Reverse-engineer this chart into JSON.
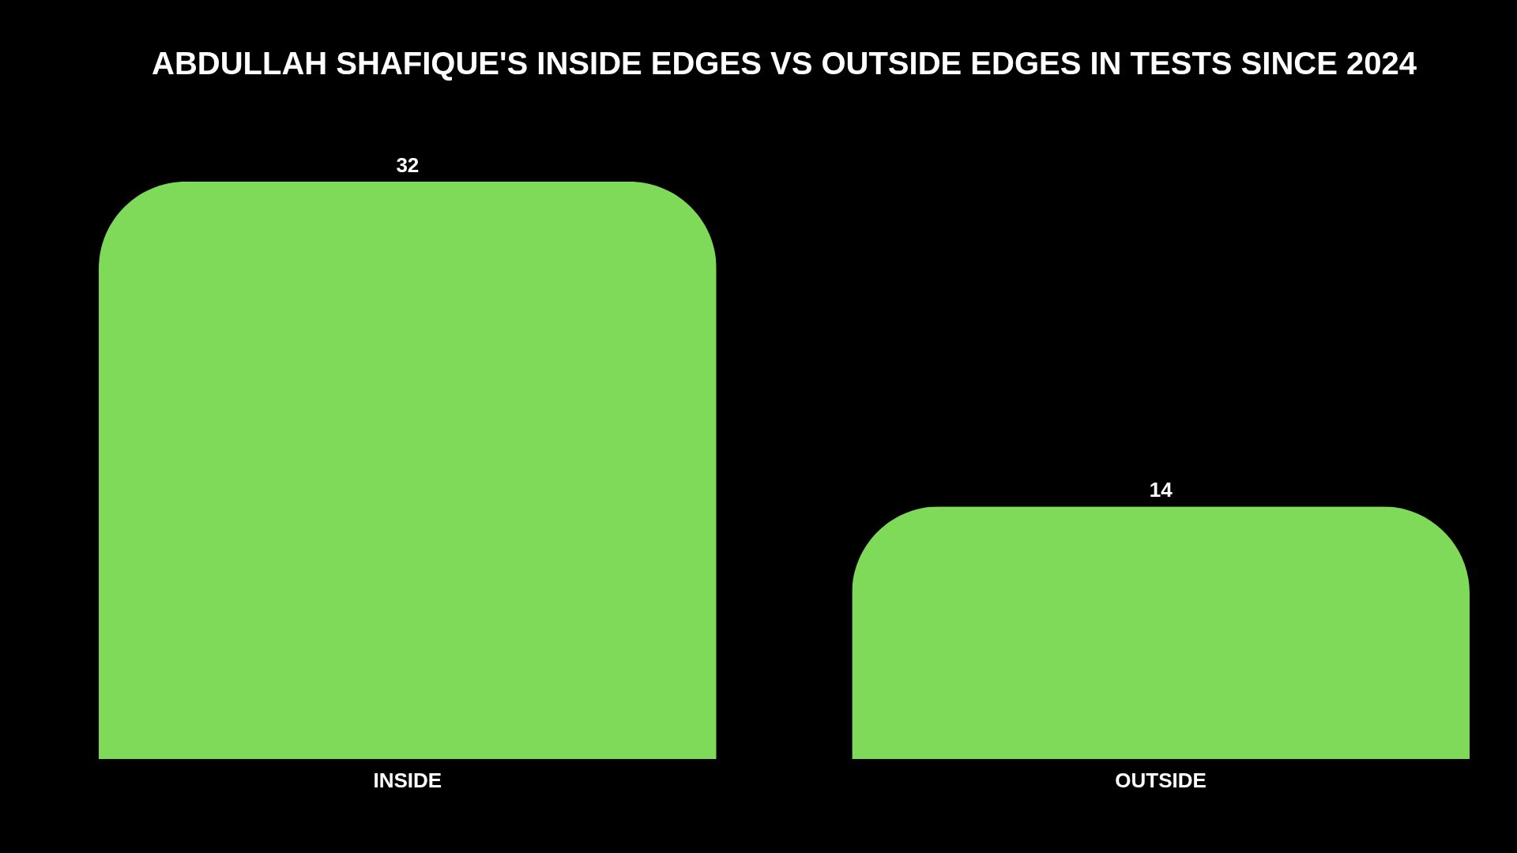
{
  "chart_data": {
    "type": "bar",
    "title": "ABDULLAH SHAFIQUE'S INSIDE EDGES VS OUTSIDE EDGES IN TESTS SINCE 2024",
    "categories": [
      "INSIDE",
      "OUTSIDE"
    ],
    "values": [
      32,
      14
    ],
    "color": "#80da5a",
    "data_labels": true
  }
}
